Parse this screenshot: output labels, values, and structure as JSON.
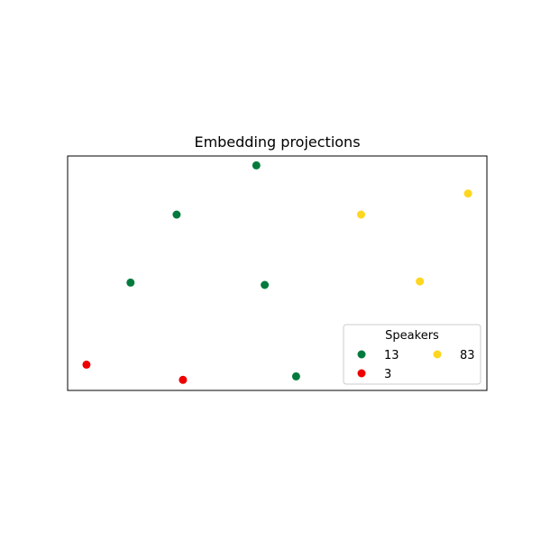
{
  "chart_data": {
    "type": "scatter",
    "title": "Embedding projections",
    "xlabel": "",
    "ylabel": "",
    "axes_ticks": "hidden",
    "grid": false,
    "xlim": [
      0,
      10
    ],
    "ylim": [
      0,
      10
    ],
    "legend": {
      "title": "Speakers",
      "placement": "lower-right",
      "columns": 2
    },
    "series": [
      {
        "name": "13",
        "color": "#007a3d",
        "points": [
          {
            "x": 4.5,
            "y": 9.6
          },
          {
            "x": 2.6,
            "y": 7.5
          },
          {
            "x": 1.5,
            "y": 4.6
          },
          {
            "x": 4.7,
            "y": 4.5
          },
          {
            "x": 5.45,
            "y": 0.6
          }
        ]
      },
      {
        "name": "3",
        "color": "#ee0000",
        "points": [
          {
            "x": 0.45,
            "y": 1.1
          },
          {
            "x": 2.75,
            "y": 0.45
          }
        ]
      },
      {
        "name": "83",
        "color": "#ffd61f",
        "points": [
          {
            "x": 7.0,
            "y": 7.5
          },
          {
            "x": 9.55,
            "y": 8.4
          },
          {
            "x": 8.4,
            "y": 4.65
          }
        ]
      }
    ]
  }
}
